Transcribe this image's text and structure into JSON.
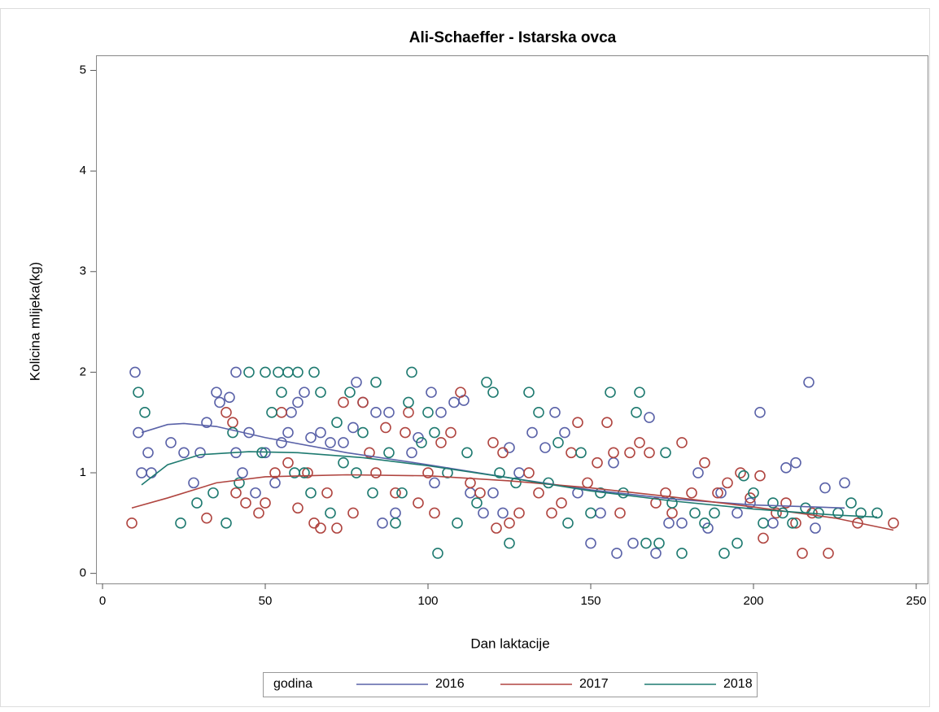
{
  "chart_data": {
    "type": "scatter",
    "title": "Ali-Schaeffer - Istarska ovca",
    "x_label": "Dan laktacije",
    "y_label": "Kolicina mlijeka(kg)",
    "xlim": [
      -2,
      253.5
    ],
    "ylim": [
      -0.1,
      5.15
    ],
    "xticks": [
      0,
      50,
      100,
      150,
      200,
      250
    ],
    "yticks": [
      0,
      1,
      2,
      3,
      4,
      5
    ],
    "legend_title": "godina",
    "legend_position": "bottom",
    "series": [
      {
        "name": "2016",
        "color": "#5a62a8",
        "x": [
          10,
          11,
          12,
          14,
          15,
          21,
          25,
          28,
          30,
          32,
          35,
          36,
          39,
          41,
          41,
          43,
          45,
          47,
          50,
          53,
          55,
          57,
          58,
          60,
          62,
          64,
          67,
          70,
          74,
          77,
          78,
          80,
          84,
          86,
          88,
          90,
          95,
          97,
          101,
          102,
          104,
          108,
          111,
          113,
          117,
          120,
          123,
          125,
          128,
          132,
          136,
          139,
          142,
          146,
          150,
          153,
          157,
          158,
          163,
          168,
          170,
          174,
          178,
          183,
          186,
          190,
          195,
          199,
          202,
          206,
          210,
          213,
          217,
          219,
          222,
          228
        ],
        "values": [
          2.0,
          1.4,
          1.0,
          1.2,
          1.0,
          1.3,
          1.2,
          0.9,
          1.2,
          1.5,
          1.8,
          1.7,
          1.75,
          2.0,
          1.2,
          1.0,
          1.4,
          0.8,
          1.2,
          0.9,
          1.3,
          1.4,
          1.6,
          1.7,
          1.8,
          1.35,
          1.4,
          1.3,
          1.3,
          1.45,
          1.9,
          1.7,
          1.6,
          0.5,
          1.6,
          0.6,
          1.2,
          1.35,
          1.8,
          0.9,
          1.6,
          1.7,
          1.72,
          0.8,
          0.6,
          0.8,
          0.6,
          1.25,
          1.0,
          1.4,
          1.25,
          1.6,
          1.4,
          0.8,
          0.3,
          0.6,
          1.1,
          0.2,
          0.3,
          1.55,
          0.2,
          0.5,
          0.5,
          1.0,
          0.45,
          0.8,
          0.6,
          0.7,
          1.6,
          0.5,
          1.05,
          1.1,
          1.9,
          0.45,
          0.85,
          0.9
        ],
        "fit": {
          "x": [
            12,
            20,
            25,
            35,
            50,
            75,
            100,
            125,
            150,
            175,
            200,
            228
          ],
          "values": [
            1.4,
            1.48,
            1.49,
            1.46,
            1.35,
            1.2,
            1.08,
            0.95,
            0.83,
            0.74,
            0.68,
            0.65
          ]
        }
      },
      {
        "name": "2017",
        "color": "#b04540",
        "x": [
          9,
          32,
          38,
          40,
          41,
          44,
          48,
          50,
          53,
          55,
          57,
          60,
          63,
          65,
          67,
          69,
          72,
          74,
          77,
          80,
          82,
          84,
          87,
          90,
          93,
          94,
          97,
          100,
          102,
          104,
          107,
          110,
          113,
          116,
          120,
          121,
          123,
          125,
          128,
          131,
          134,
          138,
          141,
          144,
          146,
          149,
          152,
          155,
          157,
          159,
          162,
          165,
          168,
          170,
          173,
          175,
          178,
          181,
          185,
          189,
          192,
          196,
          199,
          202,
          203,
          207,
          210,
          213,
          215,
          218,
          223,
          232,
          243
        ],
        "values": [
          0.5,
          0.55,
          1.6,
          1.5,
          0.8,
          0.7,
          0.6,
          0.7,
          1.0,
          1.6,
          1.1,
          0.65,
          1.0,
          0.5,
          0.45,
          0.8,
          0.45,
          1.7,
          0.6,
          1.7,
          1.2,
          1.0,
          1.45,
          0.8,
          1.4,
          1.6,
          0.7,
          1.0,
          0.6,
          1.3,
          1.4,
          1.8,
          0.9,
          0.8,
          1.3,
          0.45,
          1.2,
          0.5,
          0.6,
          1.0,
          0.8,
          0.6,
          0.7,
          1.2,
          1.5,
          0.9,
          1.1,
          1.5,
          1.2,
          0.6,
          1.2,
          1.3,
          1.2,
          0.7,
          0.8,
          0.6,
          1.3,
          0.8,
          1.1,
          0.8,
          0.9,
          1.0,
          0.75,
          0.97,
          0.35,
          0.6,
          0.7,
          0.5,
          0.2,
          0.6,
          0.2,
          0.5,
          0.5
        ],
        "fit": {
          "x": [
            9,
            20,
            35,
            50,
            75,
            100,
            125,
            150,
            175,
            200,
            225,
            243
          ],
          "values": [
            0.65,
            0.75,
            0.9,
            0.96,
            0.98,
            0.97,
            0.92,
            0.85,
            0.76,
            0.66,
            0.55,
            0.43
          ]
        }
      },
      {
        "name": "2018",
        "color": "#1e7a70",
        "x": [
          11,
          13,
          24,
          29,
          34,
          38,
          40,
          42,
          45,
          49,
          50,
          52,
          54,
          55,
          57,
          59,
          60,
          62,
          64,
          65,
          67,
          70,
          72,
          74,
          76,
          78,
          80,
          83,
          84,
          88,
          90,
          92,
          94,
          95,
          98,
          100,
          102,
          103,
          106,
          109,
          112,
          115,
          118,
          120,
          122,
          125,
          127,
          131,
          134,
          137,
          140,
          143,
          147,
          150,
          153,
          156,
          160,
          164,
          165,
          167,
          171,
          173,
          175,
          178,
          182,
          185,
          188,
          191,
          195,
          197,
          200,
          203,
          206,
          209,
          212,
          216,
          220,
          226,
          230,
          233,
          238
        ],
        "values": [
          1.8,
          1.6,
          0.5,
          0.7,
          0.8,
          0.5,
          1.4,
          0.9,
          2.0,
          1.2,
          2.0,
          1.6,
          2.0,
          1.8,
          2.0,
          1.0,
          2.0,
          1.0,
          0.8,
          2.0,
          1.8,
          0.6,
          1.5,
          1.1,
          1.8,
          1.0,
          1.4,
          0.8,
          1.9,
          1.2,
          0.5,
          0.8,
          1.7,
          2.0,
          1.3,
          1.6,
          1.4,
          0.2,
          1.0,
          0.5,
          1.2,
          0.7,
          1.9,
          1.8,
          1.0,
          0.3,
          0.9,
          1.8,
          1.6,
          0.9,
          1.3,
          0.5,
          1.2,
          0.6,
          0.8,
          1.8,
          0.8,
          1.6,
          1.8,
          0.3,
          0.3,
          1.2,
          0.7,
          0.2,
          0.6,
          0.5,
          0.6,
          0.2,
          0.3,
          0.97,
          0.8,
          0.5,
          0.7,
          0.6,
          0.5,
          0.65,
          0.6,
          0.6,
          0.7,
          0.6,
          0.6
        ],
        "fit": {
          "x": [
            12,
            20,
            30,
            45,
            60,
            80,
            100,
            125,
            150,
            175,
            200,
            225,
            238
          ],
          "values": [
            0.88,
            1.08,
            1.18,
            1.21,
            1.2,
            1.15,
            1.07,
            0.95,
            0.82,
            0.72,
            0.64,
            0.58,
            0.56
          ]
        }
      }
    ]
  }
}
